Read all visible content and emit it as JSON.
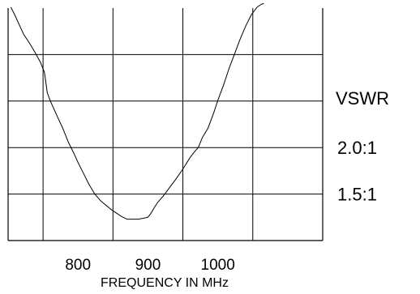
{
  "chart_data": {
    "type": "line",
    "title": "",
    "xlabel": "FREQUENCY IN MHz",
    "ylabel": "VSWR",
    "x_ticks": [
      800,
      900,
      1000
    ],
    "x_tick_labels": [
      "800",
      "900",
      "1000"
    ],
    "xlim": [
      700,
      1150
    ],
    "ylim": [
      1.0,
      3.5
    ],
    "y_ticks": [
      1.5,
      2.0
    ],
    "y_tick_labels": [
      "1.5:1",
      "2.0:1"
    ],
    "grid": true,
    "series": [
      {
        "x": [
          704,
          710,
          716,
          722,
          730,
          738,
          746,
          752,
          756,
          760,
          764,
          770,
          778,
          786,
          794,
          800,
          808,
          816,
          824,
          832,
          840,
          848,
          856,
          862,
          870,
          878,
          886,
          894,
          900,
          904,
          908,
          914,
          922,
          930,
          940,
          950,
          960,
          966,
          972,
          978,
          986,
          994,
          1000,
          1008,
          1016,
          1024,
          1032,
          1040,
          1048,
          1056,
          1062,
          1066
        ],
        "y": [
          3.51,
          3.42,
          3.32,
          3.22,
          3.13,
          3.03,
          2.92,
          2.81,
          2.59,
          2.51,
          2.44,
          2.34,
          2.21,
          2.06,
          1.94,
          1.84,
          1.72,
          1.6,
          1.5,
          1.43,
          1.38,
          1.33,
          1.29,
          1.26,
          1.23,
          1.23,
          1.23,
          1.24,
          1.25,
          1.29,
          1.34,
          1.41,
          1.48,
          1.56,
          1.66,
          1.77,
          1.89,
          1.95,
          2.0,
          2.11,
          2.21,
          2.37,
          2.51,
          2.67,
          2.85,
          3.01,
          3.17,
          3.31,
          3.43,
          3.51,
          3.54,
          3.55
        ]
      }
    ]
  }
}
